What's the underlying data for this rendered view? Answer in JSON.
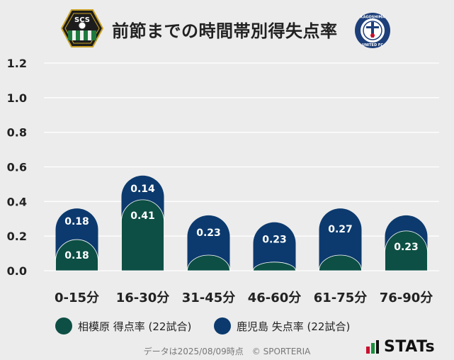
{
  "title": "前節までの時間帯別得失点率",
  "logos": {
    "left_text": "SCS",
    "right_text_top": "KAGOSHIMA",
    "right_text_bottom": "UNITED FC"
  },
  "colors": {
    "home": "#0d4f44",
    "away": "#0c3a6e",
    "gridline": "#ffffff",
    "axis_text": "#222222",
    "background": "#ececec"
  },
  "chart_data": {
    "type": "bar",
    "categories": [
      "0-15分",
      "16-30分",
      "31-45分",
      "46-60分",
      "61-75分",
      "76-90分"
    ],
    "series": [
      {
        "name": "相模原 得点率 (22試合)",
        "values": [
          0.18,
          0.41,
          0.09,
          0.05,
          0.09,
          0.23
        ],
        "labels": [
          "0.18",
          "0.41",
          "",
          "",
          "",
          "0.23"
        ],
        "color": "#0d4f44"
      },
      {
        "name": "鹿児島 失点率 (22試合)",
        "values": [
          0.18,
          0.14,
          0.23,
          0.23,
          0.27,
          0.09
        ],
        "labels": [
          "0.18",
          "0.14",
          "0.23",
          "0.23",
          "0.27",
          ""
        ],
        "color": "#0c3a6e"
      }
    ],
    "y_ticks": [
      "0.0",
      "0.2",
      "0.4",
      "0.6",
      "0.8",
      "1.0",
      "1.2"
    ],
    "ylim": [
      0,
      1.2
    ],
    "stacked": true,
    "grid": true
  },
  "legend": [
    {
      "label": "相模原 得点率 (22試合)",
      "color": "#0d4f44"
    },
    {
      "label": "鹿児島 失点率 (22試合)",
      "color": "#0c3a6e"
    }
  ],
  "footer": "データは2025/08/09時点　© SPORTERIA",
  "brand": "STATs"
}
